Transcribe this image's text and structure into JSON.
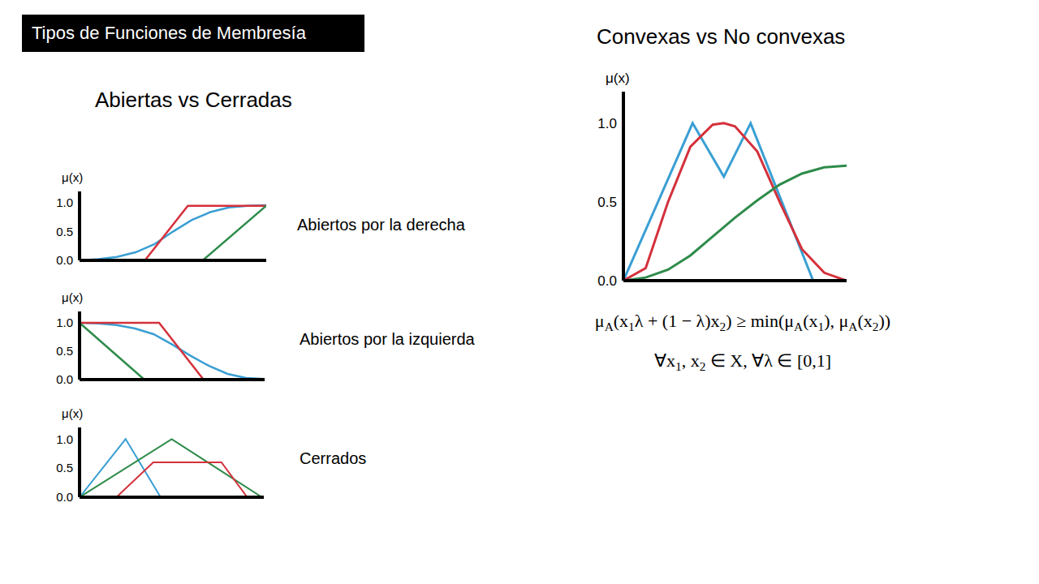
{
  "slide": {
    "title": "Tipos de Funciones de Membresía",
    "headings": [
      "Abiertas vs Cerradas"
    ],
    "formula": {
      "line1": [
        {
          "text": "μ"
        },
        {
          "sub": "A"
        },
        {
          "text": "(x"
        },
        {
          "sub": "1"
        },
        {
          "text": "λ + (1 − λ)x"
        },
        {
          "sub": "2"
        },
        {
          "text": ") ≥ min(μ"
        },
        {
          "sub": "A"
        },
        {
          "text": "(x"
        },
        {
          "sub": "1"
        },
        {
          "text": "), μ"
        },
        {
          "sub": "A"
        },
        {
          "text": "(x"
        },
        {
          "sub": "2"
        },
        {
          "text": "))"
        }
      ],
      "line2": [
        {
          "text": "∀x"
        },
        {
          "sub": "1"
        },
        {
          "text": ", x"
        },
        {
          "sub": "2"
        },
        {
          "text": " ∈ X, ∀λ ∈ [0,1]"
        }
      ]
    }
  },
  "chart_data": [
    {
      "type": "line",
      "title": "Abiertos por la derecha",
      "ylabel": "μ(x)",
      "xlim": [
        0,
        10
      ],
      "ylim": [
        0,
        1.2
      ],
      "yticks": [
        {
          "value": 0,
          "label": "0.0"
        },
        {
          "value": 0.5,
          "label": "0.5"
        },
        {
          "value": 1,
          "label": "1.0"
        }
      ],
      "tick_labels": "y",
      "series": [
        {
          "color": "#3a9fd3",
          "x": [
            0,
            1,
            2,
            3,
            4,
            5,
            6,
            7,
            8,
            9,
            10
          ],
          "values": [
            0,
            0.02,
            0.06,
            0.14,
            0.28,
            0.5,
            0.7,
            0.84,
            0.92,
            0.95,
            0.96
          ]
        },
        {
          "color": "#d4313b",
          "x": [
            0,
            3.5,
            5.8,
            10
          ],
          "values": [
            0,
            0,
            0.95,
            0.95
          ]
        },
        {
          "color": "#2e8b4a",
          "x": [
            0,
            6.6,
            10
          ],
          "values": [
            0,
            0,
            0.95
          ]
        }
      ]
    },
    {
      "type": "line",
      "title": "Abiertos por la izquierda",
      "ylabel": "μ(x)",
      "xlim": [
        0,
        10
      ],
      "ylim": [
        0,
        1.2
      ],
      "yticks": [
        {
          "value": 0,
          "label": "0.0"
        },
        {
          "value": 0.5,
          "label": "0.5"
        },
        {
          "value": 1,
          "label": "1.0"
        }
      ],
      "tick_labels": "y",
      "series": [
        {
          "color": "#3a9fd3",
          "x": [
            0,
            1,
            2,
            3,
            4,
            5,
            6,
            7,
            8,
            9,
            10
          ],
          "values": [
            1,
            0.99,
            0.96,
            0.9,
            0.8,
            0.62,
            0.42,
            0.24,
            0.1,
            0.03,
            0.01
          ]
        },
        {
          "color": "#d4313b",
          "x": [
            0,
            4.3,
            6.7,
            10
          ],
          "values": [
            1,
            1,
            0,
            0
          ]
        },
        {
          "color": "#2e8b4a",
          "x": [
            0,
            3.5,
            10
          ],
          "values": [
            1,
            0,
            0
          ]
        }
      ]
    },
    {
      "type": "line",
      "title": "Cerrados",
      "ylabel": "μ(x)",
      "xlim": [
        0,
        10
      ],
      "ylim": [
        0,
        1.2
      ],
      "yticks": [
        {
          "value": 0,
          "label": "0.0"
        },
        {
          "value": 0.5,
          "label": "0.5"
        },
        {
          "value": 1,
          "label": "1.0"
        }
      ],
      "tick_labels": "y",
      "series": [
        {
          "color": "#3a9fd3",
          "x": [
            0,
            2.5,
            4.4,
            10
          ],
          "values": [
            0,
            1,
            0,
            0
          ]
        },
        {
          "color": "#2e8b4a",
          "x": [
            0,
            5,
            9.9
          ],
          "values": [
            0,
            1,
            0
          ]
        },
        {
          "color": "#d4313b",
          "x": [
            0,
            2,
            4,
            7.7,
            9.1,
            10
          ],
          "values": [
            0,
            0,
            0.6,
            0.6,
            0,
            0
          ]
        }
      ]
    },
    {
      "type": "line",
      "title": "Convexas vs No convexas",
      "ylabel": "μ(x)",
      "xlim": [
        0,
        10
      ],
      "ylim": [
        0,
        1.2
      ],
      "yticks": [
        {
          "value": 0,
          "label": "0.0"
        },
        {
          "value": 0.5,
          "label": "0.5"
        },
        {
          "value": 1,
          "label": "1.0"
        }
      ],
      "tick_labels": "y",
      "series": [
        {
          "color": "#3a9fd3",
          "x": [
            0,
            3.1,
            4.5,
            5.7,
            8.5,
            10
          ],
          "values": [
            0,
            1,
            0.66,
            1,
            0,
            0
          ]
        },
        {
          "color": "#d4313b",
          "x": [
            0,
            1,
            2,
            3,
            4,
            4.5,
            5,
            6,
            7,
            8,
            9,
            10
          ],
          "values": [
            0,
            0.08,
            0.5,
            0.85,
            0.99,
            1,
            0.98,
            0.82,
            0.5,
            0.2,
            0.05,
            0
          ]
        },
        {
          "color": "#2e8b4a",
          "x": [
            0,
            1,
            2,
            3,
            4,
            5,
            6,
            7,
            8,
            9,
            10
          ],
          "values": [
            0,
            0.02,
            0.07,
            0.16,
            0.28,
            0.4,
            0.51,
            0.61,
            0.68,
            0.72,
            0.73
          ]
        }
      ]
    }
  ]
}
